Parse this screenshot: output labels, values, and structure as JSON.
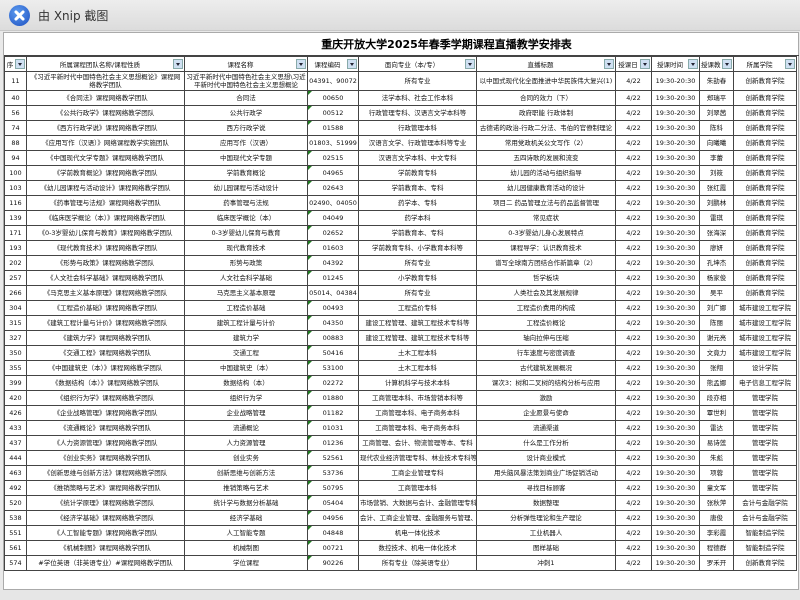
{
  "window": {
    "title": "由 Xnip 截图",
    "icon": "xnip-logo-icon"
  },
  "sheet": {
    "title": "重庆开放大学2025年春季学期课程直播教学安排表",
    "headers": [
      "序",
      "所属课程团队名称/课程性质",
      "课程名称",
      "课程编码",
      "面向专业（本/专）",
      "直播标题",
      "授课日",
      "授课时间",
      "授课教师",
      "所属学院"
    ],
    "rows": [
      [
        "11",
        "《习近平新时代中国特色社会主义思想概论》课程网络教学团队",
        "习近平新时代中国特色社会主义思想\\习近平新时代中国特色社会主义思想概论",
        "04391、90072",
        "所有专业",
        "以中国式现代化全面推进中华民族伟大复兴(1)",
        "4/22",
        "19:30-20:30",
        "朱劼春",
        "创新教育学院"
      ],
      [
        "40",
        "《合同法》课程网络教学团队",
        "合同法",
        "00650",
        "法学本科、社会工作本科",
        "合同的效力（下）",
        "4/22",
        "19:30-20:30",
        "郑瑞平",
        "创新教育学院"
      ],
      [
        "56",
        "《公共行政学》课程网络教学团队",
        "公共行政学",
        "00512",
        "行政管理专科、汉语言文学本科等",
        "政府职能 行政体制",
        "4/22",
        "19:30-20:30",
        "刘翠茜",
        "创新教育学院"
      ],
      [
        "74",
        "《西方行政学说》课程网络教学团队",
        "西方行政学说",
        "01588",
        "行政管理本科",
        "古德诺的政治-行政二分法、韦伯的官僚制理论",
        "4/22",
        "19:30-20:30",
        "陈科",
        "创新教育学院"
      ],
      [
        "88",
        "《应用写作（汉语）》网络课程教学实施团队",
        "应用写作（汉语）",
        "01803、51999",
        "汉语言文学、行政管理本科等专业",
        "常用党政机关公文写作（2）",
        "4/22",
        "19:30-20:30",
        "向曦曦",
        "创新教育学院"
      ],
      [
        "94",
        "《中国现代文学专题》课程网络教学团队",
        "中国现代文学专题",
        "02515",
        "汉语言文学本科、中文专科",
        "五四诗歌的发展和流变",
        "4/22",
        "19:30-20:30",
        "李蕾",
        "创新教育学院"
      ],
      [
        "100",
        "《学前教育概论》课程网络教学团队",
        "学前教育概论",
        "04965",
        "学前教育专科",
        "幼儿园的活动与组织指导",
        "4/22",
        "19:30-20:30",
        "刘筱",
        "创新教育学院"
      ],
      [
        "103",
        "《幼儿园课程与活动设计》课程网络教学团队",
        "幼儿园课程与活动设计",
        "02643",
        "学前教育本、专科",
        "幼儿园健康教育活动的设计",
        "4/22",
        "19:30-20:30",
        "张红霞",
        "创新教育学院"
      ],
      [
        "116",
        "《药事管理与法规》课程网络教学团队",
        "药事管理与法规",
        "02490、04050",
        "药学本、专科",
        "项目二 药品管理立法与药品监督管理",
        "4/22",
        "19:30-20:30",
        "刘鹏林",
        "创新教育学院"
      ],
      [
        "139",
        "《临床医学概论（本）》课程网络教学团队",
        "临床医学概论（本）",
        "04049",
        "药学本科",
        "常见症状",
        "4/22",
        "19:30-20:30",
        "雷琪",
        "创新教育学院"
      ],
      [
        "171",
        "《0-3岁婴幼儿保育与教育》课程网络教学团队",
        "0-3岁婴幼儿保育与教育",
        "02652",
        "学前教育本、专科",
        "0-3岁婴幼儿身心发展特点",
        "4/22",
        "19:30-20:30",
        "张海深",
        "创新教育学院"
      ],
      [
        "193",
        "《现代教育技术》课程网络教学团队",
        "现代教育技术",
        "01603",
        "学前教育专科、小学教育本科等",
        "课程导学：认识教育技术",
        "4/22",
        "19:30-20:30",
        "廖妍",
        "创新教育学院"
      ],
      [
        "202",
        "《形势与政策》课程网络教学团队",
        "形势与政策",
        "04392",
        "所有专业",
        "谱写全球南方团结合作新篇章（2）",
        "4/22",
        "19:30-20:30",
        "孔坤杰",
        "创新教育学院"
      ],
      [
        "257",
        "《人文社会科学基础》课程网络教学团队",
        "人文社会科学基础",
        "01245",
        "小学教育专科",
        "哲学板块",
        "4/22",
        "19:30-20:30",
        "杨家俊",
        "创新教育学院"
      ],
      [
        "266",
        "《马克思主义基本原理》课程网络教学团队",
        "马克思主义基本原理",
        "05014、04384",
        "所有专业",
        "人类社会及其发展规律",
        "4/22",
        "19:30-20:30",
        "吴平",
        "创新教育学院"
      ],
      [
        "304",
        "《工程造价基础》课程网络教学团队",
        "工程造价基础",
        "00493",
        "工程造价专科",
        "工程造价费用的构成",
        "4/22",
        "19:30-20:30",
        "刘广娜",
        "城市建设工程学院"
      ],
      [
        "315",
        "《建筑工程计量与计价》课程网络教学团队",
        "建筑工程计量与计价",
        "04350",
        "建设工程管理、建筑工程技术专科等",
        "工程造价概论",
        "4/22",
        "19:30-20:30",
        "陈丽",
        "城市建设工程学院"
      ],
      [
        "327",
        "《建筑力学》课程网络教学团队",
        "建筑力学",
        "00883",
        "建设工程管理、建筑工程技术专科等",
        "轴向拉伸与压缩",
        "4/22",
        "19:30-20:30",
        "谢元亮",
        "城市建设工程学院"
      ],
      [
        "350",
        "《交通工程》课程网络教学团队",
        "交通工程",
        "50416",
        "土木工程本科",
        "行车速度与密度调查",
        "4/22",
        "19:30-20:30",
        "文竟力",
        "城市建设工程学院"
      ],
      [
        "355",
        "《中国建筑史（本）》课程网络教学团队",
        "中国建筑史（本）",
        "53100",
        "土木工程本科",
        "古代建筑发展概况",
        "4/22",
        "19:30-20:30",
        "张翔",
        "设计学院"
      ],
      [
        "399",
        "《数据结构（本）》课程网络教学团队",
        "数据结构（本）",
        "02272",
        "计算机科学与技术本科",
        "课次3：树和二叉树的结构分析与应用",
        "4/22",
        "19:30-20:30",
        "熊孟娜",
        "电子信息工程学院"
      ],
      [
        "420",
        "《组织行为学》课程网络教学团队",
        "组织行为学",
        "01880",
        "工商管理本科、市场营销本科等",
        "激励",
        "4/22",
        "19:30-20:30",
        "段亦相",
        "管理学院"
      ],
      [
        "426",
        "《企业战略管理》课程网络教学团队",
        "企业战略管理",
        "01182",
        "工商管理本科、电子商务本科",
        "企业愿景与使命",
        "4/22",
        "19:30-20:30",
        "覃世利",
        "管理学院"
      ],
      [
        "433",
        "《流通概论》课程网络教学团队",
        "流通概论",
        "01031",
        "工商管理本科、电子商务本科",
        "流通渠道",
        "4/22",
        "19:30-20:30",
        "雷达",
        "管理学院"
      ],
      [
        "437",
        "《人力资源管理》课程网络教学团队",
        "人力资源管理",
        "01236",
        "工商管理、会计、物流管理等本、专科",
        "什么是工作分析",
        "4/22",
        "19:30-20:30",
        "易诗莲",
        "管理学院"
      ],
      [
        "444",
        "《创业实务》课程网络教学团队",
        "创业实务",
        "52561",
        "现代农业经济管理专科、林业技术专科等",
        "设计商业模式",
        "4/22",
        "19:30-20:30",
        "朱彪",
        "管理学院"
      ],
      [
        "463",
        "《创新思维与创新方法》课程网络教学团队",
        "创新思维与创新方法",
        "53736",
        "工商企业管理专科",
        "用头脑风暴法策划商业广场促销活动",
        "4/22",
        "19:30-20:30",
        "项蓉",
        "管理学院"
      ],
      [
        "492",
        "《推销策略与艺术》课程网络教学团队",
        "推销策略与艺术",
        "50795",
        "工商管理本科",
        "寻找目标顾客",
        "4/22",
        "19:30-20:30",
        "童文军",
        "管理学院"
      ],
      [
        "520",
        "《统计学原理》课程网络教学团队",
        "统计学与数据分析基础",
        "05404",
        "市场营销、大数据与会计、金融管理专科",
        "数据整理",
        "4/22",
        "19:30-20:30",
        "张秋萍",
        "会计与金融学院"
      ],
      [
        "538",
        "《经济学基础》课程网络教学团队",
        "经济学基础",
        "04956",
        "会计、工商企业管理、金融服务与管理、金融",
        "分析弹性理论和生产理论",
        "4/22",
        "19:30-20:30",
        "唐俊",
        "会计与金融学院"
      ],
      [
        "551",
        "《人工智能专题》课程网络教学团队",
        "人工智能专题",
        "04848",
        "机电一体化技术",
        "工业机器人",
        "4/22",
        "19:30-20:30",
        "李彩霞",
        "智能制造学院"
      ],
      [
        "561",
        "《机械制图》课程网络教学团队",
        "机械制图",
        "00721",
        "数控技术、机电一体化技术",
        "图样基础",
        "4/22",
        "19:30-20:30",
        "程德群",
        "智能制造学院"
      ],
      [
        "574",
        "#学位英语（非英语专业）#课程网络教学团队",
        "学位课程",
        "90226",
        "所有专业（除英语专业）",
        "冲刺1",
        "4/22",
        "19:30-20:30",
        "罗禾开",
        "创新教育学院"
      ]
    ]
  }
}
